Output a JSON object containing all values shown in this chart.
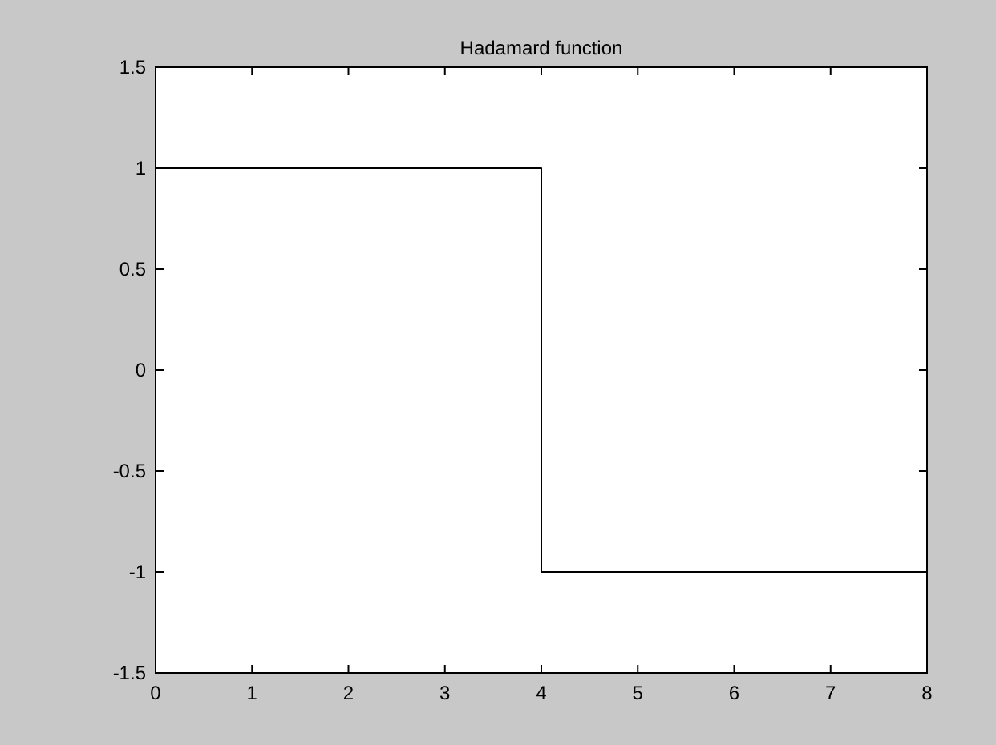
{
  "chart_data": {
    "type": "line",
    "title": "Hadamard function",
    "x": [
      0,
      4,
      4,
      8
    ],
    "series": [
      {
        "color": "#000000",
        "values": [
          1,
          1,
          -1,
          -1
        ]
      }
    ],
    "xlim": [
      0,
      8
    ],
    "xticks": [
      0,
      1,
      2,
      3,
      4,
      5,
      6,
      7,
      8
    ],
    "ylim": [
      -1.5,
      1.5
    ],
    "yticks": [
      -1.5,
      -1,
      -0.5,
      0,
      0.5,
      1,
      1.5
    ],
    "grid": false,
    "marker": "none",
    "line_style": "solid"
  }
}
